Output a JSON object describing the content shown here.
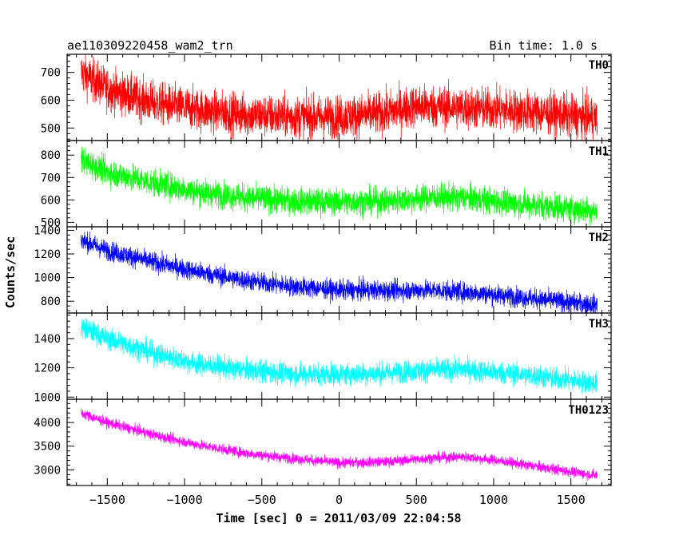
{
  "header": {
    "title": "ae110309220458_wam2_trn",
    "bin_time": "Bin time: 1.0 s"
  },
  "chart_data": {
    "type": "line",
    "title": "ae110309220458_wam2_trn",
    "xlabel": "Time [sec] 0 = 2011/03/09 22:04:58",
    "ylabel": "Counts/sec",
    "xlim": [
      -1760,
      1760
    ],
    "x_ticks": [
      -1500,
      -1000,
      -500,
      0,
      500,
      1000,
      1500
    ],
    "x_tick_labels": [
      "−1500",
      "−1000",
      "−500",
      "0",
      "500",
      "1000",
      "1500"
    ],
    "data_x_range": [
      -1670,
      1670
    ],
    "bin_time_s": 1.0,
    "panels": [
      {
        "name": "TH0",
        "color": "#ff0000",
        "ylim": [
          455,
          765
        ],
        "yticks": [
          500,
          600,
          700
        ],
        "trend": [
          [
            -1670,
            700
          ],
          [
            -1500,
            640
          ],
          [
            -1200,
            590
          ],
          [
            -900,
            565
          ],
          [
            -600,
            548
          ],
          [
            -300,
            540
          ],
          [
            0,
            540
          ],
          [
            300,
            555
          ],
          [
            500,
            580
          ],
          [
            700,
            575
          ],
          [
            1000,
            568
          ],
          [
            1300,
            555
          ],
          [
            1670,
            535
          ]
        ],
        "noise": 38
      },
      {
        "name": "TH1",
        "color": "#00ff00",
        "ylim": [
          480,
          865
        ],
        "yticks": [
          500,
          600,
          700,
          800
        ],
        "trend": [
          [
            -1670,
            780
          ],
          [
            -1500,
            725
          ],
          [
            -1200,
            675
          ],
          [
            -900,
            635
          ],
          [
            -600,
            610
          ],
          [
            -300,
            595
          ],
          [
            0,
            590
          ],
          [
            300,
            595
          ],
          [
            600,
            612
          ],
          [
            800,
            610
          ],
          [
            1000,
            595
          ],
          [
            1300,
            575
          ],
          [
            1670,
            550
          ]
        ],
        "noise": 30
      },
      {
        "name": "TH2",
        "color": "#0000ff",
        "ylim": [
          700,
          1430
        ],
        "yticks": [
          800,
          1000,
          1200,
          1400
        ],
        "trend": [
          [
            -1670,
            1320
          ],
          [
            -1500,
            1230
          ],
          [
            -1200,
            1130
          ],
          [
            -900,
            1045
          ],
          [
            -600,
            975
          ],
          [
            -300,
            925
          ],
          [
            0,
            895
          ],
          [
            300,
            890
          ],
          [
            600,
            895
          ],
          [
            900,
            870
          ],
          [
            1200,
            830
          ],
          [
            1500,
            790
          ],
          [
            1670,
            770
          ]
        ],
        "noise": 42
      },
      {
        "name": "TH3",
        "color": "#00ffff",
        "ylim": [
          985,
          1575
        ],
        "yticks": [
          1000,
          1200,
          1400
        ],
        "trend": [
          [
            -1670,
            1480
          ],
          [
            -1500,
            1400
          ],
          [
            -1200,
            1300
          ],
          [
            -900,
            1225
          ],
          [
            -600,
            1185
          ],
          [
            -300,
            1160
          ],
          [
            0,
            1155
          ],
          [
            300,
            1165
          ],
          [
            600,
            1185
          ],
          [
            800,
            1190
          ],
          [
            1000,
            1170
          ],
          [
            1300,
            1140
          ],
          [
            1670,
            1095
          ]
        ],
        "noise": 38
      },
      {
        "name": "TH0123",
        "color": "#ff00ff",
        "ylim": [
          2670,
          4490
        ],
        "yticks": [
          3000,
          3500,
          4000
        ],
        "trend": [
          [
            -1670,
            4200
          ],
          [
            -1500,
            4000
          ],
          [
            -1200,
            3740
          ],
          [
            -900,
            3520
          ],
          [
            -600,
            3350
          ],
          [
            -300,
            3240
          ],
          [
            0,
            3150
          ],
          [
            300,
            3170
          ],
          [
            600,
            3250
          ],
          [
            800,
            3280
          ],
          [
            1000,
            3210
          ],
          [
            1300,
            3060
          ],
          [
            1670,
            2880
          ]
        ],
        "noise": 55
      }
    ]
  }
}
